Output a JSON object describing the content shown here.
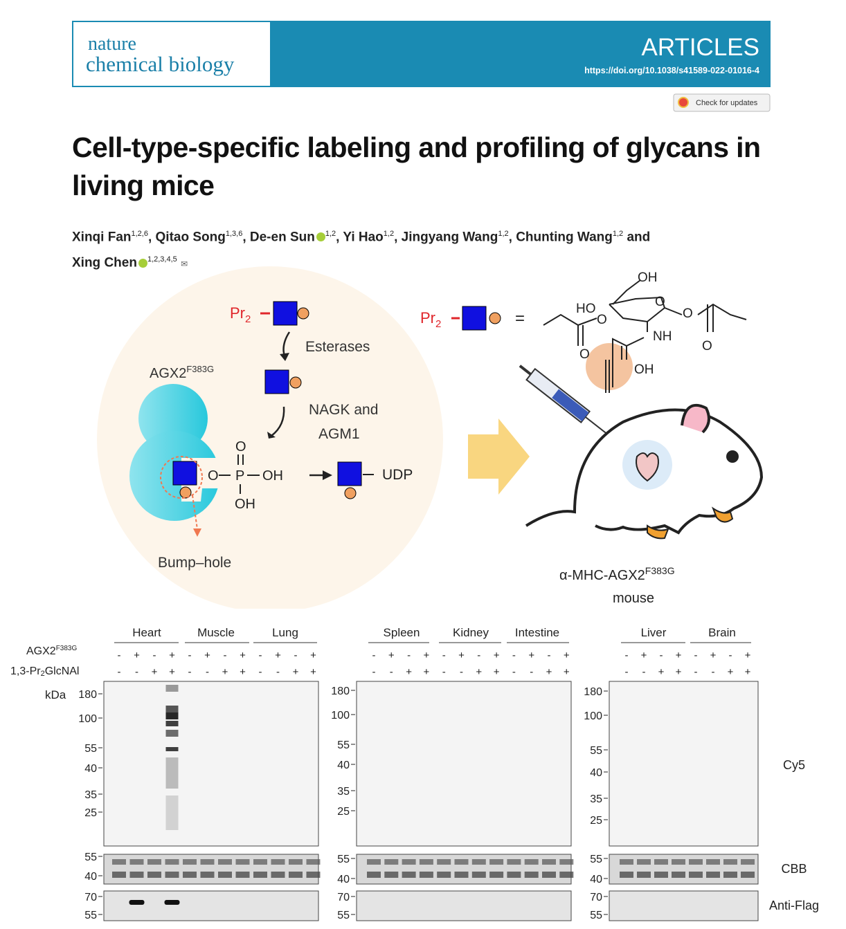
{
  "header": {
    "journal_line1": "nature",
    "journal_line2": "chemical biology",
    "section": "ARTICLES",
    "doi": "https://doi.org/10.1038/s41589-022-01016-4",
    "check_updates": "Check for updates"
  },
  "title": "Cell-type-specific labeling and profiling of glycans in living mice",
  "authors": [
    {
      "name": "Xinqi Fan",
      "affiliations": "1,2,6"
    },
    {
      "name": "Qitao Song",
      "affiliations": "1,3,6"
    },
    {
      "name": "De-en Sun",
      "affiliations": "1,2"
    },
    {
      "name": "Yi Hao",
      "affiliations": "1,2"
    },
    {
      "name": "Jingyang Wang",
      "affiliations": "1,2"
    },
    {
      "name": "Chunting Wang",
      "affiliations": "1,2"
    },
    {
      "name": "Xing Chen",
      "affiliations": "1,2,3,4,5"
    }
  ],
  "author_separator": ",",
  "author_conjunction": "and",
  "scheme": {
    "pr_label": {
      "base": "Pr",
      "sub": "2"
    },
    "esterases": "Esterases",
    "nagk_line1": "NAGK and",
    "nagk_line2": "AGM1",
    "enzyme": {
      "base": "AGX2",
      "sup": "F383G"
    },
    "phosphate": {
      "top": "O",
      "left": "O",
      "p": "P",
      "right": "OH",
      "bottom": "OH"
    },
    "udp": "UDP",
    "bump_hole": "Bump–hole",
    "equals": "=",
    "structure_labels": [
      "OH",
      "HO",
      "O",
      "O",
      "O",
      "NH",
      "O",
      "O",
      "OH"
    ],
    "mouse_line1": {
      "base": "α-MHC-AGX2",
      "sup": "F383G"
    },
    "mouse_line2": "mouse"
  },
  "gel": {
    "row_labels": [
      {
        "base": "AGX2",
        "sup": "F383G"
      },
      {
        "pre": "1,3-Pr",
        "sub": "2",
        "post": "GlcNAl"
      }
    ],
    "kda": "kDa",
    "blot_labels": [
      "Cy5",
      "CBB",
      "Anti-Flag"
    ],
    "panels": [
      {
        "tissues": [
          "Heart",
          "Muscle",
          "Lung"
        ],
        "agx2": [
          "-",
          "+",
          "-",
          "+",
          "-",
          "+",
          "-",
          "+",
          "-",
          "+",
          "-",
          "+"
        ],
        "pr2": [
          "-",
          "-",
          "+",
          "+",
          "-",
          "-",
          "+",
          "+",
          "-",
          "-",
          "+",
          "+"
        ],
        "cy5_markers": [
          180,
          100,
          55,
          40,
          35,
          25
        ],
        "cbb_markers": [
          55,
          40
        ],
        "flag_markers": [
          70,
          55
        ]
      },
      {
        "tissues": [
          "Spleen",
          "Kidney",
          "Intestine"
        ],
        "agx2": [
          "-",
          "+",
          "-",
          "+",
          "-",
          "+",
          "-",
          "+",
          "-",
          "+",
          "-",
          "+"
        ],
        "pr2": [
          "-",
          "-",
          "+",
          "+",
          "-",
          "-",
          "+",
          "+",
          "-",
          "-",
          "+",
          "+"
        ],
        "cy5_markers": [
          180,
          100,
          55,
          40,
          35,
          25
        ],
        "cbb_markers": [
          55,
          40
        ],
        "flag_markers": [
          70,
          55
        ]
      },
      {
        "tissues": [
          "Liver",
          "Brain"
        ],
        "agx2": [
          "-",
          "+",
          "-",
          "+",
          "-",
          "+",
          "-",
          "+"
        ],
        "pr2": [
          "-",
          "-",
          "+",
          "+",
          "-",
          "-",
          "+",
          "+"
        ],
        "cy5_markers": [
          180,
          100,
          55,
          40,
          35,
          25
        ],
        "cbb_markers": [
          55,
          40
        ],
        "flag_markers": [
          70,
          55
        ]
      }
    ]
  }
}
